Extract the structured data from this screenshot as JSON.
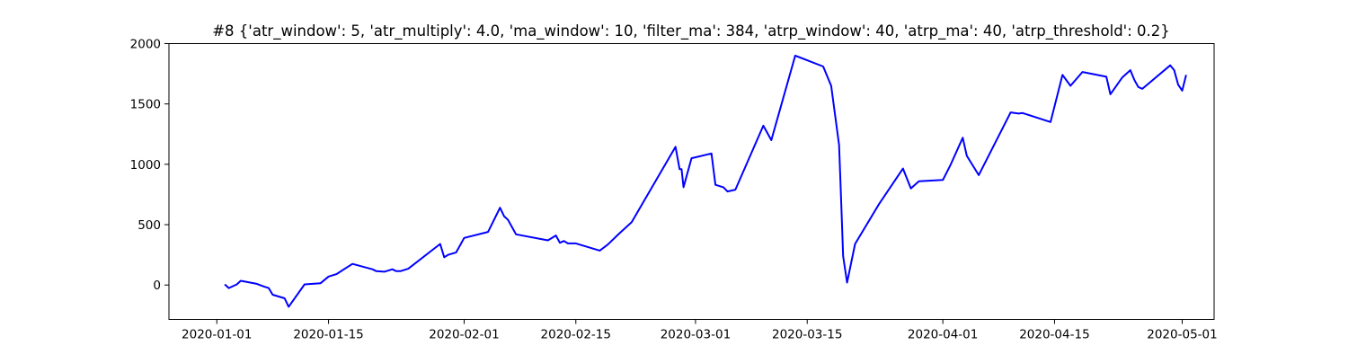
{
  "chart_data": {
    "type": "line",
    "title": "#8 {'atr_window': 5, 'atr_multiply': 4.0, 'ma_window': 10, 'filter_ma': 384, 'atrp_window': 40, 'atrp_ma': 40, 'atrp_threshold': 0.2}",
    "xlabel": "",
    "ylabel": "",
    "grid": false,
    "legend": null,
    "x_axis_type": "date",
    "xlim": [
      "2019-12-26",
      "2020-05-05"
    ],
    "ylim": [
      -285,
      2000
    ],
    "x_ticks": [
      {
        "date": "2020-01-01",
        "label": "2020-01-01"
      },
      {
        "date": "2020-01-15",
        "label": "2020-01-15"
      },
      {
        "date": "2020-02-01",
        "label": "2020-02-01"
      },
      {
        "date": "2020-02-15",
        "label": "2020-02-15"
      },
      {
        "date": "2020-03-01",
        "label": "2020-03-01"
      },
      {
        "date": "2020-03-15",
        "label": "2020-03-15"
      },
      {
        "date": "2020-04-01",
        "label": "2020-04-01"
      },
      {
        "date": "2020-04-15",
        "label": "2020-04-15"
      },
      {
        "date": "2020-05-01",
        "label": "2020-05-01"
      }
    ],
    "y_ticks": [
      {
        "value": 0,
        "label": "0"
      },
      {
        "value": 500,
        "label": "500"
      },
      {
        "value": 1000,
        "label": "1000"
      },
      {
        "value": 1500,
        "label": "1500"
      },
      {
        "value": 2000,
        "label": "2000"
      }
    ],
    "series": [
      {
        "color": "#0000ff",
        "points": [
          [
            "2020-01-02",
            5
          ],
          [
            "2020-01-02 12:00",
            -25
          ],
          [
            "2020-01-03 12:00",
            5
          ],
          [
            "2020-01-04",
            35
          ],
          [
            "2020-01-06",
            10
          ],
          [
            "2020-01-07",
            -15
          ],
          [
            "2020-01-07 12:00",
            -25
          ],
          [
            "2020-01-08",
            -80
          ],
          [
            "2020-01-09 12:00",
            -110
          ],
          [
            "2020-01-10",
            -180
          ],
          [
            "2020-01-12",
            5
          ],
          [
            "2020-01-14",
            15
          ],
          [
            "2020-01-15",
            70
          ],
          [
            "2020-01-16",
            90
          ],
          [
            "2020-01-18",
            175
          ],
          [
            "2020-01-20 12:00",
            130
          ],
          [
            "2020-01-21",
            115
          ],
          [
            "2020-01-22",
            110
          ],
          [
            "2020-01-23",
            130
          ],
          [
            "2020-01-23 12:00",
            115
          ],
          [
            "2020-01-24",
            115
          ],
          [
            "2020-01-25",
            135
          ],
          [
            "2020-01-29",
            340
          ],
          [
            "2020-01-29 12:00",
            230
          ],
          [
            "2020-01-30",
            250
          ],
          [
            "2020-01-31",
            270
          ],
          [
            "2020-02-01",
            390
          ],
          [
            "2020-02-04",
            440
          ],
          [
            "2020-02-05 12:00",
            640
          ],
          [
            "2020-02-06",
            570
          ],
          [
            "2020-02-06 12:00",
            540
          ],
          [
            "2020-02-07 12:00",
            420
          ],
          [
            "2020-02-11 12:00",
            370
          ],
          [
            "2020-02-12 12:00",
            410
          ],
          [
            "2020-02-13",
            350
          ],
          [
            "2020-02-13 12:00",
            365
          ],
          [
            "2020-02-14",
            345
          ],
          [
            "2020-02-15",
            345
          ],
          [
            "2020-02-18",
            285
          ],
          [
            "2020-02-19",
            335
          ],
          [
            "2020-02-20 12:00",
            430
          ],
          [
            "2020-02-22",
            520
          ],
          [
            "2020-02-27 12:00",
            1145
          ],
          [
            "2020-02-28",
            960
          ],
          [
            "2020-02-28 06:00",
            960
          ],
          [
            "2020-02-28 12:00",
            810
          ],
          [
            "2020-02-29 12:00",
            1050
          ],
          [
            "2020-03-03",
            1090
          ],
          [
            "2020-03-03 12:00",
            830
          ],
          [
            "2020-03-04 12:00",
            810
          ],
          [
            "2020-03-05",
            775
          ],
          [
            "2020-03-06",
            790
          ],
          [
            "2020-03-09 12:00",
            1320
          ],
          [
            "2020-03-10 12:00",
            1200
          ],
          [
            "2020-03-13 12:00",
            1900
          ],
          [
            "2020-03-17",
            1810
          ],
          [
            "2020-03-18",
            1650
          ],
          [
            "2020-03-19",
            1160
          ],
          [
            "2020-03-19 06:00",
            700
          ],
          [
            "2020-03-19 12:00",
            240
          ],
          [
            "2020-03-20",
            20
          ],
          [
            "2020-03-21",
            340
          ],
          [
            "2020-03-24",
            670
          ],
          [
            "2020-03-27",
            965
          ],
          [
            "2020-03-28",
            800
          ],
          [
            "2020-03-29",
            860
          ],
          [
            "2020-04-01",
            870
          ],
          [
            "2020-04-02",
            1000
          ],
          [
            "2020-04-03 12:00",
            1220
          ],
          [
            "2020-04-04",
            1070
          ],
          [
            "2020-04-05 12:00",
            910
          ],
          [
            "2020-04-09 12:00",
            1430
          ],
          [
            "2020-04-10 12:00",
            1420
          ],
          [
            "2020-04-11",
            1425
          ],
          [
            "2020-04-14 12:00",
            1350
          ],
          [
            "2020-04-16",
            1740
          ],
          [
            "2020-04-17",
            1650
          ],
          [
            "2020-04-18 12:00",
            1765
          ],
          [
            "2020-04-21 12:00",
            1725
          ],
          [
            "2020-04-22",
            1580
          ],
          [
            "2020-04-23 12:00",
            1720
          ],
          [
            "2020-04-24 12:00",
            1780
          ],
          [
            "2020-04-25",
            1700
          ],
          [
            "2020-04-25 12:00",
            1640
          ],
          [
            "2020-04-26",
            1625
          ],
          [
            "2020-04-29 12:00",
            1820
          ],
          [
            "2020-04-30",
            1780
          ],
          [
            "2020-04-30 12:00",
            1660
          ],
          [
            "2020-05-01",
            1610
          ],
          [
            "2020-05-01 12:00",
            1740
          ]
        ]
      }
    ]
  }
}
